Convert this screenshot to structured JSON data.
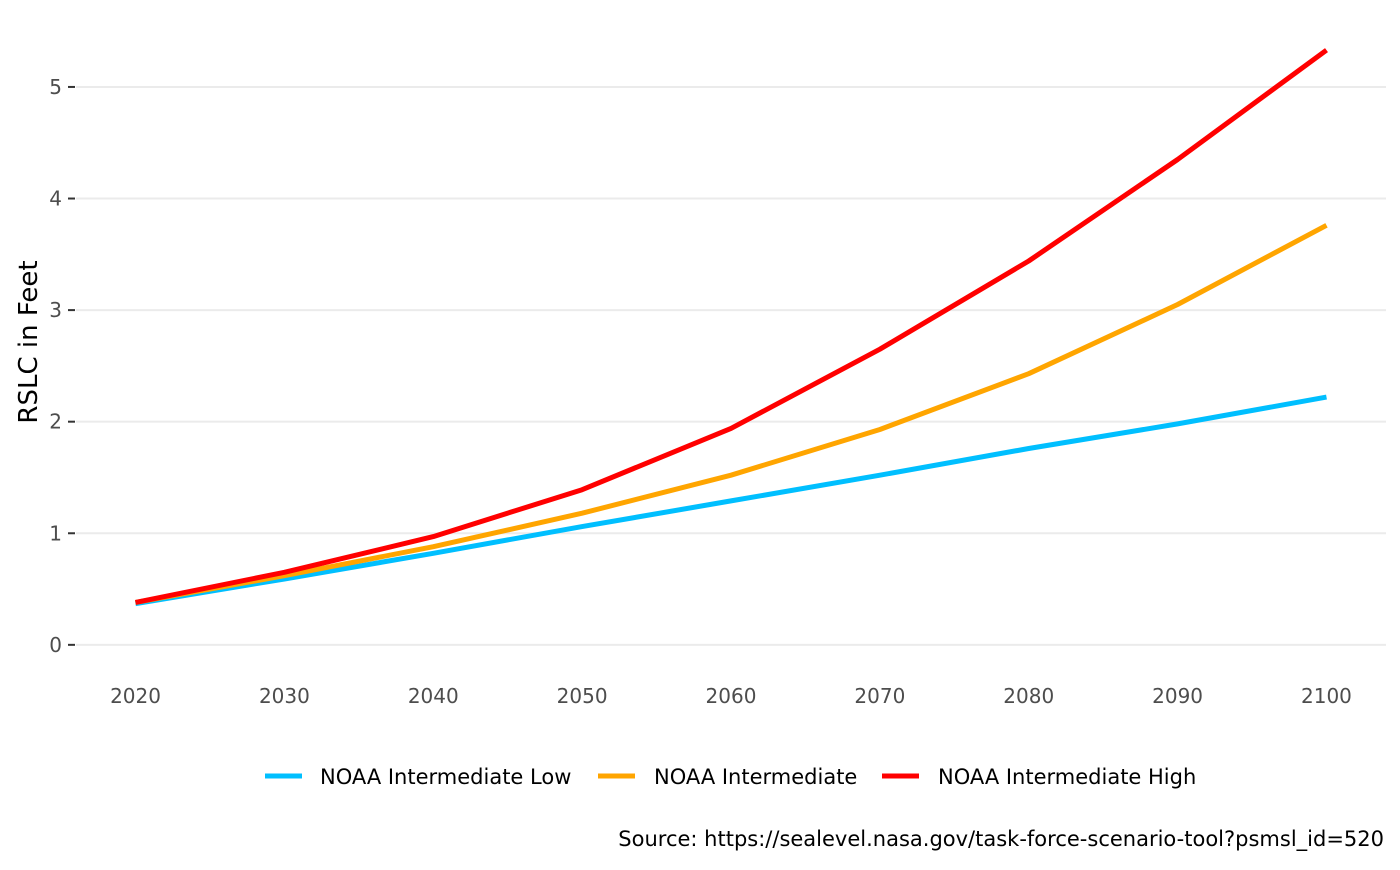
{
  "chart_data": {
    "type": "line",
    "x": [
      2020,
      2030,
      2040,
      2050,
      2060,
      2070,
      2080,
      2090,
      2100
    ],
    "series": [
      {
        "name": "NOAA Intermediate Low",
        "color": "#00BFFF",
        "values": [
          0.37,
          0.59,
          0.82,
          1.06,
          1.29,
          1.52,
          1.76,
          1.98,
          2.22
        ]
      },
      {
        "name": "NOAA Intermediate",
        "color": "#FFA500",
        "values": [
          0.38,
          0.62,
          0.88,
          1.18,
          1.52,
          1.93,
          2.43,
          3.05,
          3.76
        ]
      },
      {
        "name": "NOAA Intermediate High",
        "color": "#FF0000",
        "values": [
          0.38,
          0.65,
          0.97,
          1.39,
          1.94,
          2.65,
          3.44,
          4.35,
          5.33
        ]
      }
    ],
    "title": "",
    "xlabel": "",
    "ylabel": "RSLC in Feet",
    "xlim": [
      2016,
      2104
    ],
    "ylim": [
      -0.1,
      5.6
    ],
    "xticks": [
      2020,
      2030,
      2040,
      2050,
      2060,
      2070,
      2080,
      2090,
      2100
    ],
    "yticks": [
      0,
      1,
      2,
      3,
      4,
      5
    ],
    "grid": "horizontal",
    "legend_position": "bottom",
    "caption": "Source: https://sealevel.nasa.gov/task-force-scenario-tool?psmsl_id=520"
  }
}
